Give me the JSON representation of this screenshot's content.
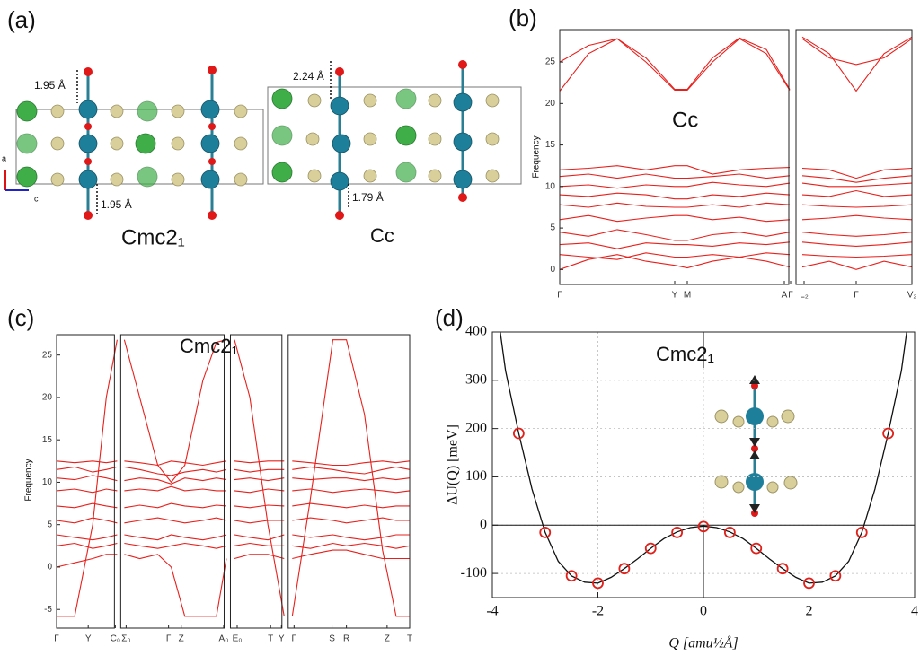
{
  "panel_labels": [
    "(a)",
    "(b)",
    "(c)",
    "(d)"
  ],
  "structure": {
    "left": {
      "phase": "Cmc2₁",
      "distances": [
        "1.95 Å",
        "1.95 Å"
      ]
    },
    "right": {
      "phase": "Cc",
      "distances": [
        "2.24 Å",
        "1.79 Å"
      ]
    },
    "axes": [
      "a",
      "c"
    ]
  },
  "chart_data": [
    {
      "type": "line",
      "ylabel": "Frequency",
      "annotation": "Cc",
      "ylim": [
        -1.8,
        28.9
      ],
      "yticks": [
        0,
        5,
        10,
        15,
        20,
        25
      ],
      "xlim": [
        0,
        3.84
      ],
      "panel_breaks": [
        2.59
      ],
      "xticks": [
        {
          "value": 0,
          "label": "Γ"
        },
        {
          "value": 1.28,
          "label": "Y"
        },
        {
          "value": 1.42,
          "label": "M"
        },
        {
          "value": 2.5,
          "label": "A"
        },
        {
          "value": 2.57,
          "label": "Γ"
        },
        {
          "value": 2.64,
          "label": "L₂"
        },
        {
          "value": 3.22,
          "label": "Γ"
        },
        {
          "value": 3.84,
          "label": "V₂"
        }
      ],
      "color": "#e8201c",
      "x": [
        0,
        0.32,
        0.64,
        0.96,
        1.28,
        1.42,
        1.7,
        2.0,
        2.3,
        2.56,
        2.62,
        2.92,
        3.22,
        3.53,
        3.84
      ],
      "series": [
        {
          "values": [
            21.5,
            26,
            27.8,
            25,
            21.6,
            21.6,
            25,
            27.8,
            26,
            21.6,
            28,
            26,
            21.5,
            26,
            28
          ]
        },
        {
          "values": [
            25,
            27,
            27.8,
            25.5,
            21.7,
            21.7,
            25.5,
            27.9,
            26.5,
            21.7,
            27.8,
            25.5,
            24.7,
            25.5,
            27.8
          ]
        },
        {
          "values": [
            12,
            12.2,
            12.5,
            12,
            12.5,
            12.5,
            11.5,
            12,
            12.2,
            12.3,
            12.2,
            12,
            11,
            12,
            12.2
          ]
        },
        {
          "values": [
            11.2,
            11.5,
            11,
            11.5,
            11,
            11,
            11.2,
            11.5,
            11,
            11.3,
            11.3,
            11,
            10.5,
            11,
            11.3
          ]
        },
        {
          "values": [
            10,
            10.2,
            9.8,
            10.2,
            10,
            10,
            10.5,
            10.2,
            10,
            10.4,
            10.4,
            10,
            10,
            10.2,
            10.4
          ]
        },
        {
          "values": [
            9,
            8.8,
            9.2,
            9,
            8.5,
            8.5,
            9,
            8.8,
            9.2,
            9,
            9,
            8.8,
            9.5,
            8.8,
            9
          ]
        },
        {
          "values": [
            7.8,
            7.5,
            8,
            7.6,
            7.5,
            7.5,
            7.8,
            7.5,
            8,
            7.8,
            7.8,
            7.6,
            7.5,
            7.6,
            7.8
          ]
        },
        {
          "values": [
            6,
            6.5,
            5.8,
            6.2,
            6.5,
            6.5,
            6,
            6.3,
            5.8,
            6,
            6,
            6.2,
            6.5,
            6.2,
            6
          ]
        },
        {
          "values": [
            4.5,
            4,
            4.8,
            4.2,
            3.5,
            3.5,
            4.2,
            4.5,
            4,
            4.5,
            4.5,
            4.2,
            4,
            4.2,
            4.5
          ]
        },
        {
          "values": [
            3,
            3.2,
            2.5,
            3.2,
            3,
            3,
            2.8,
            3.2,
            3,
            3.3,
            3.3,
            3,
            2.8,
            3,
            3.3
          ]
        },
        {
          "values": [
            1.8,
            1.5,
            1.2,
            2,
            1.5,
            1.5,
            1.8,
            1.5,
            2,
            1.8,
            1.8,
            1.6,
            1.5,
            1.6,
            1.8
          ]
        },
        {
          "values": [
            0,
            1.2,
            1.8,
            1,
            0.5,
            0.2,
            1,
            1.5,
            1,
            0.3,
            0.3,
            1,
            0,
            1,
            0.3
          ]
        }
      ]
    },
    {
      "type": "line",
      "ylabel": "Frequency",
      "annotation": "Cmc2₁",
      "ylim": [
        -7.2,
        27.4
      ],
      "yticks": [
        -5,
        0,
        5,
        10,
        15,
        20,
        25
      ],
      "xlim": [
        0,
        37
      ],
      "panel_breaks": [
        6.75,
        18.2,
        23.9
      ],
      "xticks": [
        {
          "value": 0,
          "label": "Γ"
        },
        {
          "value": 3.5,
          "label": "Y"
        },
        {
          "value": 6.5,
          "label": "C₀"
        },
        {
          "value": 7.0,
          "label": "Σ₀"
        },
        {
          "value": 11.7,
          "label": "Γ"
        },
        {
          "value": 13.1,
          "label": "Z"
        },
        {
          "value": 17.8,
          "label": "A₀"
        },
        {
          "value": 18.6,
          "label": "E₀"
        },
        {
          "value": 22.3,
          "label": "T"
        },
        {
          "value": 23.5,
          "label": "Y"
        },
        {
          "value": 24.2,
          "label": "Γ"
        },
        {
          "value": 28.4,
          "label": "S"
        },
        {
          "value": 30,
          "label": "R"
        },
        {
          "value": 34.5,
          "label": "Z"
        },
        {
          "value": 37,
          "label": "T"
        }
      ],
      "color": "#e8201c",
      "x": [
        0,
        2,
        4,
        5.5,
        6.7,
        6.8,
        8.5,
        10.5,
        12,
        13.5,
        15.5,
        17,
        18.1,
        18.3,
        20,
        22,
        23.8,
        24,
        26,
        28.5,
        30,
        32,
        34,
        35.5,
        37
      ],
      "series": [
        {
          "values": [
            -5.8,
            -5.8,
            5,
            20,
            26.8,
            26.8,
            20,
            12,
            10,
            12,
            22,
            26.5,
            26.8,
            26.8,
            20,
            5,
            -5.8,
            -5.8,
            8,
            26.8,
            26.8,
            18,
            2,
            -5.8,
            -5.8
          ]
        },
        {
          "values": [
            0,
            0.5,
            1,
            1.5,
            1.5,
            1.5,
            1,
            1.5,
            0,
            -5.8,
            -5.8,
            -5.8,
            1,
            1,
            1.5,
            1.5,
            1,
            1,
            1.5,
            2,
            2,
            1.5,
            1,
            1,
            1
          ]
        },
        {
          "values": [
            12.5,
            12.3,
            12.5,
            12.3,
            12.5,
            12.5,
            12.3,
            12,
            12.5,
            12.3,
            12,
            12.3,
            12.5,
            12.5,
            12.3,
            12.5,
            12.5,
            12.5,
            12.3,
            12,
            12,
            12.3,
            12.5,
            12.3,
            12.5
          ]
        },
        {
          "values": [
            11.5,
            11.8,
            11.2,
            11.5,
            11.8,
            11.8,
            11.5,
            11,
            10.8,
            11.2,
            11.5,
            11.2,
            11.5,
            11.5,
            11.2,
            11.5,
            11.5,
            11.5,
            11.8,
            11.5,
            11.2,
            11,
            11.5,
            11.8,
            11.5
          ]
        },
        {
          "values": [
            10.5,
            10.3,
            10.8,
            10.5,
            10.2,
            10.2,
            10.5,
            10.3,
            9.8,
            10.5,
            10.2,
            10.5,
            10.3,
            10.3,
            10.5,
            10.2,
            10.5,
            10.5,
            10.3,
            10.5,
            10.5,
            10.2,
            10.5,
            10.3,
            10.5
          ]
        },
        {
          "values": [
            9,
            9.2,
            8.8,
            9.2,
            9,
            9,
            9.2,
            9,
            9.5,
            9,
            9.2,
            9,
            9,
            9,
            8.8,
            9.2,
            9,
            9,
            9.2,
            8.8,
            9,
            9.2,
            9,
            8.8,
            9
          ]
        },
        {
          "values": [
            7.2,
            7,
            7.5,
            7.2,
            7,
            7,
            7.3,
            7,
            7.5,
            7.2,
            7,
            7.3,
            7.2,
            7.2,
            7,
            7.3,
            7.2,
            7.2,
            7.5,
            7.2,
            7,
            7.3,
            7,
            7.2,
            7.2
          ]
        },
        {
          "values": [
            5.5,
            5.2,
            5.8,
            5.5,
            5.2,
            5.2,
            5.5,
            5.8,
            5.5,
            5.2,
            5.5,
            5.8,
            5.5,
            5.5,
            5.2,
            5.5,
            5.5,
            5.5,
            5.8,
            5.5,
            5.2,
            5.5,
            5.8,
            5.5,
            5.5
          ]
        },
        {
          "values": [
            3.8,
            3.5,
            3.2,
            3.5,
            3.8,
            3.8,
            3.5,
            3.2,
            3.8,
            3.5,
            3.2,
            3.5,
            3.8,
            3.8,
            3.5,
            3.2,
            3.8,
            3.8,
            3.5,
            3.8,
            3.5,
            3.2,
            3.5,
            3.8,
            3.8
          ]
        },
        {
          "values": [
            2.5,
            2.8,
            2.2,
            2.5,
            2.8,
            2.8,
            2.5,
            2.2,
            2.5,
            2.8,
            2.5,
            2.2,
            2.5,
            2.5,
            2.8,
            2.5,
            2.5,
            2.5,
            2.2,
            2.8,
            2.5,
            2.8,
            2.5,
            2.2,
            2.5
          ]
        }
      ]
    },
    {
      "type": "scatter",
      "annotation": "Cmc2₁",
      "xlabel": "Q [amu½Å]",
      "ylabel": "ΔU(Q) [meV]",
      "xlim": [
        -4,
        4
      ],
      "xticks": [
        -4,
        -2,
        0,
        2,
        4
      ],
      "ylim": [
        -150,
        400
      ],
      "yticks": [
        -100,
        0,
        100,
        200,
        300,
        400
      ],
      "grid": true,
      "series": [
        {
          "kind": "markers",
          "color": "#e0201a",
          "x": [
            -3.5,
            -3,
            -2.5,
            -2,
            -1.5,
            -1,
            -0.5,
            0,
            0.5,
            1,
            1.5,
            2,
            2.5,
            3,
            3.5
          ],
          "values": [
            190,
            -15,
            -105,
            -120,
            -90,
            -48,
            -15,
            -3,
            -15,
            -48,
            -90,
            -120,
            -105,
            -15,
            190
          ]
        },
        {
          "kind": "line",
          "color": "#111111",
          "x": [
            -3.85,
            -3.75,
            -3.5,
            -3.25,
            -3,
            -2.75,
            -2.5,
            -2.25,
            -2,
            -1.75,
            -1.5,
            -1.25,
            -1,
            -0.75,
            -0.5,
            -0.25,
            0,
            0.25,
            0.5,
            0.75,
            1,
            1.25,
            1.5,
            1.75,
            2,
            2.25,
            2.5,
            2.75,
            3,
            3.25,
            3.5,
            3.75,
            3.85
          ],
          "values": [
            400,
            320,
            190,
            75,
            -15,
            -75,
            -105,
            -118,
            -120,
            -108,
            -90,
            -70,
            -48,
            -28,
            -14,
            -5,
            -2,
            -5,
            -14,
            -28,
            -48,
            -70,
            -90,
            -108,
            -120,
            -118,
            -105,
            -75,
            -15,
            75,
            190,
            320,
            400
          ]
        }
      ]
    }
  ]
}
